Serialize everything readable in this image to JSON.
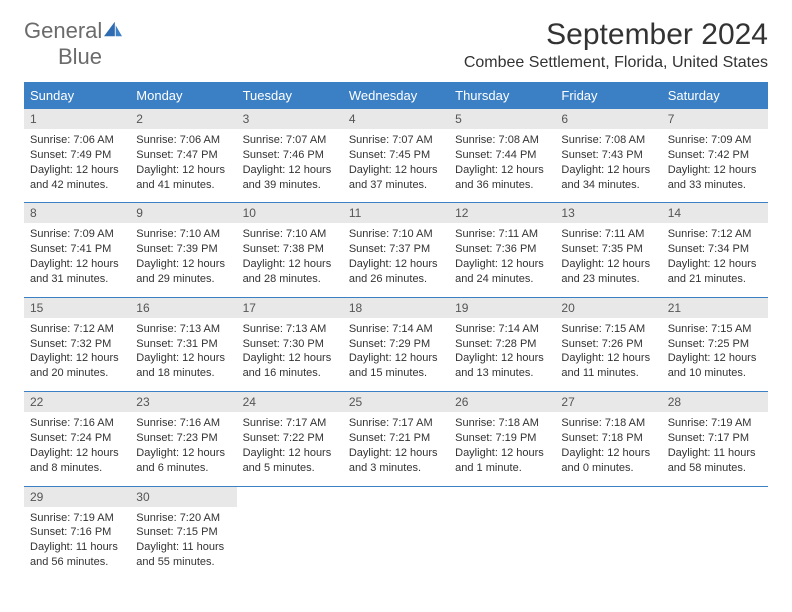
{
  "logo": {
    "line1": "General",
    "line2": "Blue"
  },
  "title": "September 2024",
  "location": "Combee Settlement, Florida, United States",
  "colors": {
    "header_bg": "#3b7fc4",
    "header_text": "#ffffff",
    "daynum_bg": "#e8e8e8",
    "row_divider": "#3b7fc4",
    "body_text": "#333333",
    "logo_gray": "#6b6b6b",
    "logo_blue": "#3b7fc4"
  },
  "layout": {
    "columns": 7,
    "font_family": "Arial",
    "title_fontsize": 30,
    "location_fontsize": 16,
    "dayhead_fontsize": 13,
    "daynum_fontsize": 12,
    "body_fontsize": 11
  },
  "day_headers": [
    "Sunday",
    "Monday",
    "Tuesday",
    "Wednesday",
    "Thursday",
    "Friday",
    "Saturday"
  ],
  "weeks": [
    {
      "nums": [
        "1",
        "2",
        "3",
        "4",
        "5",
        "6",
        "7"
      ],
      "cells": [
        {
          "sunrise": "Sunrise: 7:06 AM",
          "sunset": "Sunset: 7:49 PM",
          "daylight": "Daylight: 12 hours and 42 minutes."
        },
        {
          "sunrise": "Sunrise: 7:06 AM",
          "sunset": "Sunset: 7:47 PM",
          "daylight": "Daylight: 12 hours and 41 minutes."
        },
        {
          "sunrise": "Sunrise: 7:07 AM",
          "sunset": "Sunset: 7:46 PM",
          "daylight": "Daylight: 12 hours and 39 minutes."
        },
        {
          "sunrise": "Sunrise: 7:07 AM",
          "sunset": "Sunset: 7:45 PM",
          "daylight": "Daylight: 12 hours and 37 minutes."
        },
        {
          "sunrise": "Sunrise: 7:08 AM",
          "sunset": "Sunset: 7:44 PM",
          "daylight": "Daylight: 12 hours and 36 minutes."
        },
        {
          "sunrise": "Sunrise: 7:08 AM",
          "sunset": "Sunset: 7:43 PM",
          "daylight": "Daylight: 12 hours and 34 minutes."
        },
        {
          "sunrise": "Sunrise: 7:09 AM",
          "sunset": "Sunset: 7:42 PM",
          "daylight": "Daylight: 12 hours and 33 minutes."
        }
      ]
    },
    {
      "nums": [
        "8",
        "9",
        "10",
        "11",
        "12",
        "13",
        "14"
      ],
      "cells": [
        {
          "sunrise": "Sunrise: 7:09 AM",
          "sunset": "Sunset: 7:41 PM",
          "daylight": "Daylight: 12 hours and 31 minutes."
        },
        {
          "sunrise": "Sunrise: 7:10 AM",
          "sunset": "Sunset: 7:39 PM",
          "daylight": "Daylight: 12 hours and 29 minutes."
        },
        {
          "sunrise": "Sunrise: 7:10 AM",
          "sunset": "Sunset: 7:38 PM",
          "daylight": "Daylight: 12 hours and 28 minutes."
        },
        {
          "sunrise": "Sunrise: 7:10 AM",
          "sunset": "Sunset: 7:37 PM",
          "daylight": "Daylight: 12 hours and 26 minutes."
        },
        {
          "sunrise": "Sunrise: 7:11 AM",
          "sunset": "Sunset: 7:36 PM",
          "daylight": "Daylight: 12 hours and 24 minutes."
        },
        {
          "sunrise": "Sunrise: 7:11 AM",
          "sunset": "Sunset: 7:35 PM",
          "daylight": "Daylight: 12 hours and 23 minutes."
        },
        {
          "sunrise": "Sunrise: 7:12 AM",
          "sunset": "Sunset: 7:34 PM",
          "daylight": "Daylight: 12 hours and 21 minutes."
        }
      ]
    },
    {
      "nums": [
        "15",
        "16",
        "17",
        "18",
        "19",
        "20",
        "21"
      ],
      "cells": [
        {
          "sunrise": "Sunrise: 7:12 AM",
          "sunset": "Sunset: 7:32 PM",
          "daylight": "Daylight: 12 hours and 20 minutes."
        },
        {
          "sunrise": "Sunrise: 7:13 AM",
          "sunset": "Sunset: 7:31 PM",
          "daylight": "Daylight: 12 hours and 18 minutes."
        },
        {
          "sunrise": "Sunrise: 7:13 AM",
          "sunset": "Sunset: 7:30 PM",
          "daylight": "Daylight: 12 hours and 16 minutes."
        },
        {
          "sunrise": "Sunrise: 7:14 AM",
          "sunset": "Sunset: 7:29 PM",
          "daylight": "Daylight: 12 hours and 15 minutes."
        },
        {
          "sunrise": "Sunrise: 7:14 AM",
          "sunset": "Sunset: 7:28 PM",
          "daylight": "Daylight: 12 hours and 13 minutes."
        },
        {
          "sunrise": "Sunrise: 7:15 AM",
          "sunset": "Sunset: 7:26 PM",
          "daylight": "Daylight: 12 hours and 11 minutes."
        },
        {
          "sunrise": "Sunrise: 7:15 AM",
          "sunset": "Sunset: 7:25 PM",
          "daylight": "Daylight: 12 hours and 10 minutes."
        }
      ]
    },
    {
      "nums": [
        "22",
        "23",
        "24",
        "25",
        "26",
        "27",
        "28"
      ],
      "cells": [
        {
          "sunrise": "Sunrise: 7:16 AM",
          "sunset": "Sunset: 7:24 PM",
          "daylight": "Daylight: 12 hours and 8 minutes."
        },
        {
          "sunrise": "Sunrise: 7:16 AM",
          "sunset": "Sunset: 7:23 PM",
          "daylight": "Daylight: 12 hours and 6 minutes."
        },
        {
          "sunrise": "Sunrise: 7:17 AM",
          "sunset": "Sunset: 7:22 PM",
          "daylight": "Daylight: 12 hours and 5 minutes."
        },
        {
          "sunrise": "Sunrise: 7:17 AM",
          "sunset": "Sunset: 7:21 PM",
          "daylight": "Daylight: 12 hours and 3 minutes."
        },
        {
          "sunrise": "Sunrise: 7:18 AM",
          "sunset": "Sunset: 7:19 PM",
          "daylight": "Daylight: 12 hours and 1 minute."
        },
        {
          "sunrise": "Sunrise: 7:18 AM",
          "sunset": "Sunset: 7:18 PM",
          "daylight": "Daylight: 12 hours and 0 minutes."
        },
        {
          "sunrise": "Sunrise: 7:19 AM",
          "sunset": "Sunset: 7:17 PM",
          "daylight": "Daylight: 11 hours and 58 minutes."
        }
      ]
    },
    {
      "nums": [
        "29",
        "30",
        "",
        "",
        "",
        "",
        ""
      ],
      "cells": [
        {
          "sunrise": "Sunrise: 7:19 AM",
          "sunset": "Sunset: 7:16 PM",
          "daylight": "Daylight: 11 hours and 56 minutes."
        },
        {
          "sunrise": "Sunrise: 7:20 AM",
          "sunset": "Sunset: 7:15 PM",
          "daylight": "Daylight: 11 hours and 55 minutes."
        },
        {
          "sunrise": "",
          "sunset": "",
          "daylight": ""
        },
        {
          "sunrise": "",
          "sunset": "",
          "daylight": ""
        },
        {
          "sunrise": "",
          "sunset": "",
          "daylight": ""
        },
        {
          "sunrise": "",
          "sunset": "",
          "daylight": ""
        },
        {
          "sunrise": "",
          "sunset": "",
          "daylight": ""
        }
      ]
    }
  ]
}
